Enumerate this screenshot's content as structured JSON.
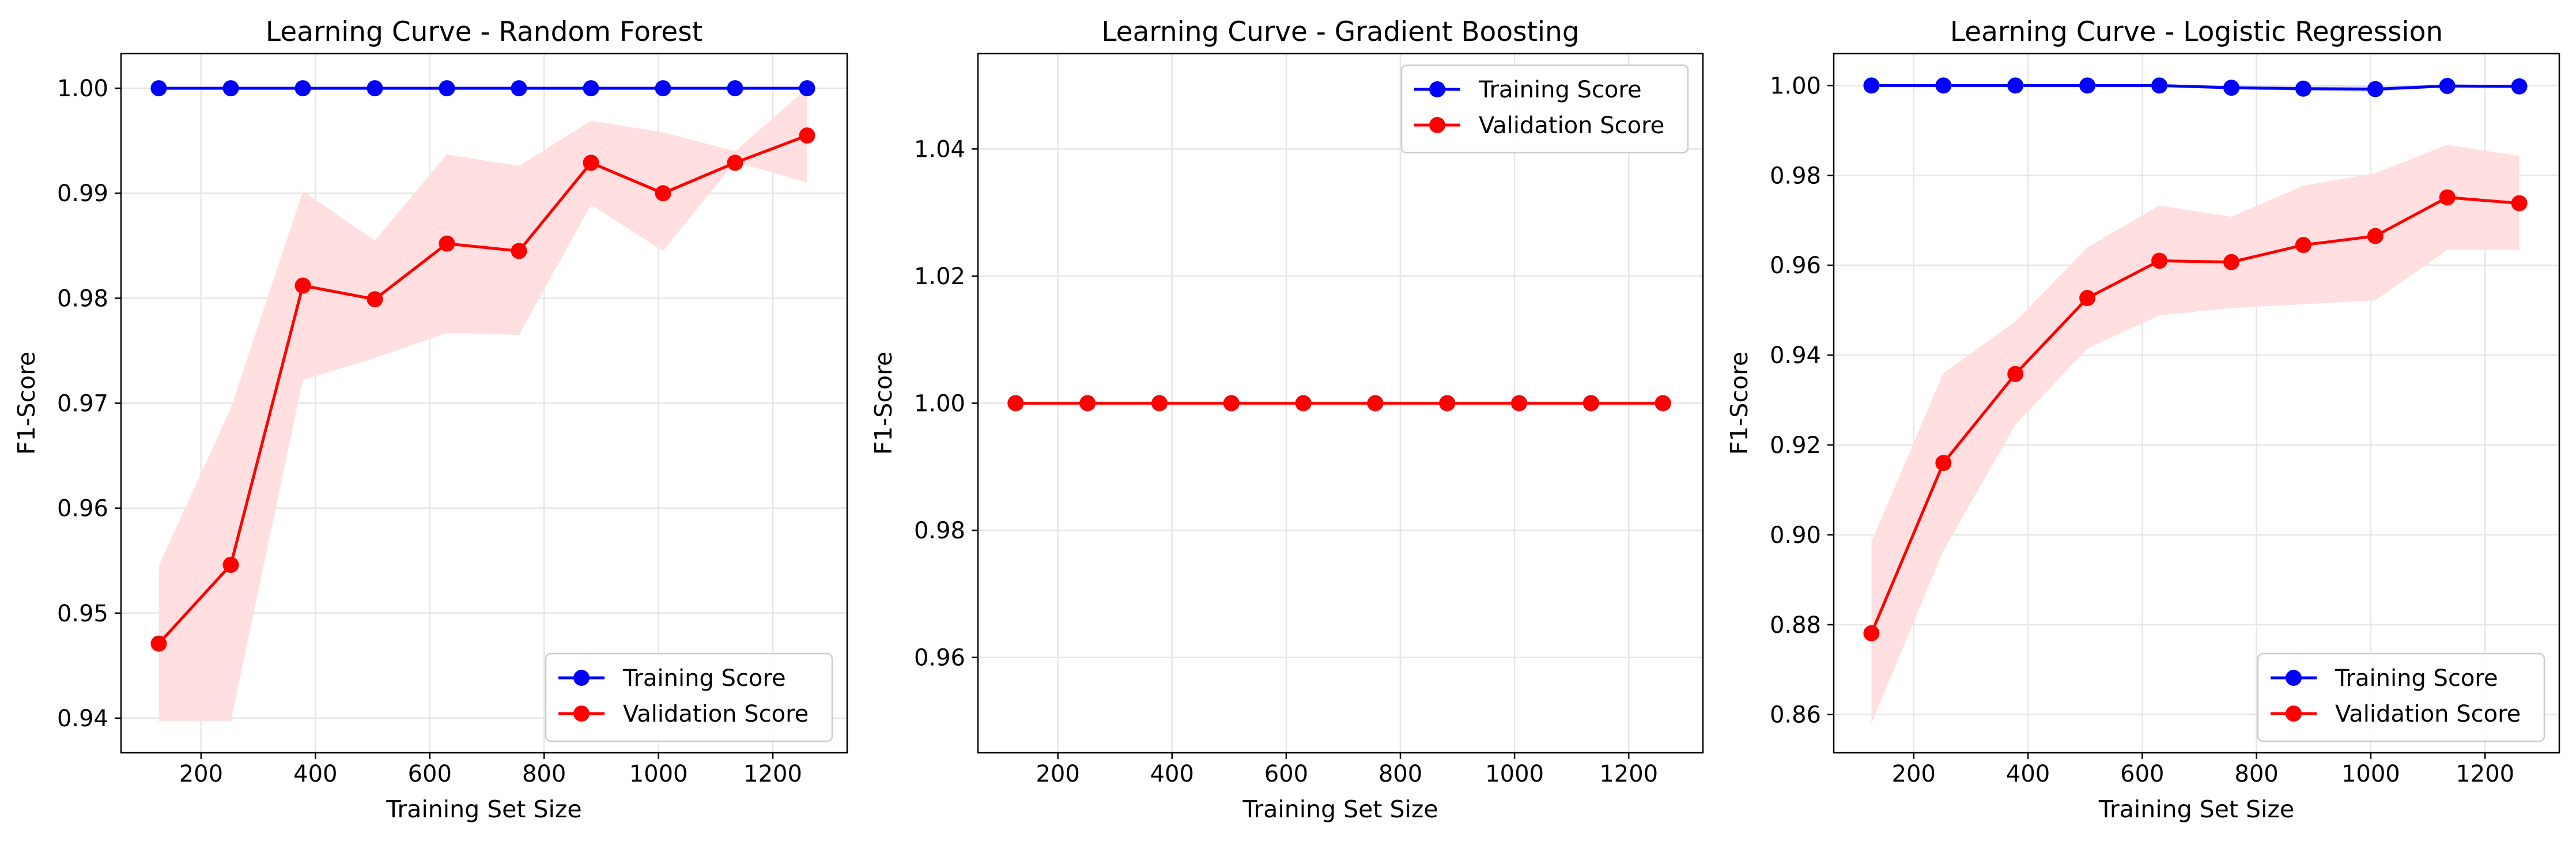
{
  "chart_data": [
    {
      "type": "line",
      "title": "Learning Curve - Random Forest",
      "xlabel": "Training Set Size",
      "ylabel": "F1-Score",
      "xlim": [
        60,
        1330
      ],
      "ylim": [
        0.9367,
        1.0033
      ],
      "x_ticks": [
        200,
        400,
        600,
        800,
        1000,
        1200
      ],
      "y_ticks": [
        0.94,
        0.95,
        0.96,
        0.97,
        0.98,
        0.99,
        1.0
      ],
      "y_tick_labels": [
        "0.94",
        "0.95",
        "0.96",
        "0.97",
        "0.98",
        "0.99",
        "1.00"
      ],
      "grid": true,
      "legend_position": "lower-right",
      "x": [
        126,
        252,
        378,
        504,
        630,
        756,
        882,
        1008,
        1134,
        1260
      ],
      "series": [
        {
          "name": "Training Score",
          "color": "#0000ff",
          "values": [
            1.0,
            1.0,
            1.0,
            1.0,
            1.0,
            1.0,
            1.0,
            1.0,
            1.0,
            1.0
          ],
          "band_lower": [
            1.0,
            1.0,
            1.0,
            1.0,
            1.0,
            1.0,
            1.0,
            1.0,
            1.0,
            1.0
          ],
          "band_upper": [
            1.0,
            1.0,
            1.0,
            1.0,
            1.0,
            1.0,
            1.0,
            1.0,
            1.0,
            1.0
          ]
        },
        {
          "name": "Validation Score",
          "color": "#ff0000",
          "values": [
            0.9471,
            0.9546,
            0.9812,
            0.9799,
            0.9852,
            0.9845,
            0.9929,
            0.99,
            0.9929,
            0.9955
          ],
          "band_lower": [
            0.9397,
            0.9397,
            0.9722,
            0.9743,
            0.9767,
            0.9765,
            0.9889,
            0.9845,
            0.993,
            0.991
          ],
          "band_upper": [
            0.9545,
            0.9695,
            0.9902,
            0.9855,
            0.9937,
            0.9926,
            0.9969,
            0.9958,
            0.994,
            1.0
          ]
        }
      ]
    },
    {
      "type": "line",
      "title": "Learning Curve - Gradient Boosting",
      "xlabel": "Training Set Size",
      "ylabel": "F1-Score",
      "xlim": [
        60,
        1330
      ],
      "ylim": [
        0.945,
        1.055
      ],
      "x_ticks": [
        200,
        400,
        600,
        800,
        1000,
        1200
      ],
      "y_ticks": [
        0.96,
        0.98,
        1.0,
        1.02,
        1.04
      ],
      "y_tick_labels": [
        "0.96",
        "0.98",
        "1.00",
        "1.02",
        "1.04"
      ],
      "grid": true,
      "legend_position": "upper-right",
      "x": [
        126,
        252,
        378,
        504,
        630,
        756,
        882,
        1008,
        1134,
        1260
      ],
      "series": [
        {
          "name": "Training Score",
          "color": "#0000ff",
          "values": [
            1.0,
            1.0,
            1.0,
            1.0,
            1.0,
            1.0,
            1.0,
            1.0,
            1.0,
            1.0
          ],
          "band_lower": [
            1.0,
            1.0,
            1.0,
            1.0,
            1.0,
            1.0,
            1.0,
            1.0,
            1.0,
            1.0
          ],
          "band_upper": [
            1.0,
            1.0,
            1.0,
            1.0,
            1.0,
            1.0,
            1.0,
            1.0,
            1.0,
            1.0
          ]
        },
        {
          "name": "Validation Score",
          "color": "#ff0000",
          "values": [
            1.0,
            1.0,
            1.0,
            1.0,
            1.0,
            1.0,
            1.0,
            1.0,
            1.0,
            1.0
          ],
          "band_lower": [
            1.0,
            1.0,
            1.0,
            1.0,
            1.0,
            1.0,
            1.0,
            1.0,
            1.0,
            1.0
          ],
          "band_upper": [
            1.0,
            1.0,
            1.0,
            1.0,
            1.0,
            1.0,
            1.0,
            1.0,
            1.0,
            1.0
          ]
        }
      ]
    },
    {
      "type": "line",
      "title": "Learning Curve - Logistic Regression",
      "xlabel": "Training Set Size",
      "ylabel": "F1-Score",
      "xlim": [
        60,
        1330
      ],
      "ylim": [
        0.8515,
        1.0071
      ],
      "x_ticks": [
        200,
        400,
        600,
        800,
        1000,
        1200
      ],
      "y_ticks": [
        0.86,
        0.88,
        0.9,
        0.92,
        0.94,
        0.96,
        0.98,
        1.0
      ],
      "y_tick_labels": [
        "0.86",
        "0.88",
        "0.90",
        "0.92",
        "0.94",
        "0.96",
        "0.98",
        "1.00"
      ],
      "grid": true,
      "legend_position": "lower-right",
      "x": [
        126,
        252,
        378,
        504,
        630,
        756,
        882,
        1008,
        1134,
        1260
      ],
      "series": [
        {
          "name": "Training Score",
          "color": "#0000ff",
          "values": [
            1.0,
            1.0,
            1.0,
            1.0,
            1.0,
            0.9995,
            0.9993,
            0.9992,
            0.9999,
            0.9998
          ],
          "band_lower": [
            1.0,
            1.0,
            1.0,
            1.0,
            0.9998,
            0.9992,
            0.9988,
            0.9986,
            0.9997,
            0.9996
          ],
          "band_upper": [
            1.0,
            1.0,
            1.0,
            1.0,
            1.0,
            0.9998,
            0.9998,
            0.9998,
            1.0,
            1.0
          ]
        },
        {
          "name": "Validation Score",
          "color": "#ff0000",
          "values": [
            0.8781,
            0.916,
            0.9358,
            0.9527,
            0.961,
            0.9607,
            0.9645,
            0.9665,
            0.9751,
            0.9738
          ],
          "band_lower": [
            0.858,
            0.8965,
            0.9245,
            0.9415,
            0.9488,
            0.9505,
            0.9513,
            0.9522,
            0.9634,
            0.9634
          ],
          "band_upper": [
            0.8985,
            0.936,
            0.9475,
            0.964,
            0.9733,
            0.9708,
            0.9777,
            0.9805,
            0.9868,
            0.9843
          ]
        }
      ]
    }
  ],
  "colors": {
    "training": "#0000ff",
    "validation": "#ff0000",
    "validation_band": "#ffdddd",
    "grid": "#e6e6e6",
    "axes": "#000000"
  }
}
